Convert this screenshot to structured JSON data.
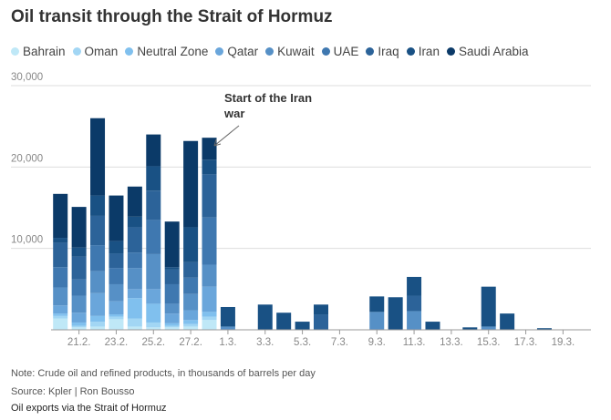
{
  "chart_data": {
    "type": "bar",
    "stacked": true,
    "title": "Oil transit through the Strait of Hormuz",
    "annotation": [
      "Start of the Iran",
      "war"
    ],
    "note": "Note: Crude oil and refined products, in thousands of barrels per day",
    "source": "Source: Kpler | Ron Bousso",
    "caption": "Oil exports via the Strait of Hormuz",
    "categories": [
      null,
      "21.2.",
      null,
      "23.2.",
      null,
      "25.2.",
      null,
      "27.2.",
      null,
      "1.3.",
      null,
      "3.3.",
      null,
      "5.3.",
      null,
      "7.3.",
      null,
      "9.3.",
      null,
      "11.3.",
      null,
      "13.3.",
      null,
      "15.3.",
      null,
      "17.3.",
      null,
      "19.3.",
      null
    ],
    "ylim": [
      0,
      30000
    ],
    "yticks": [
      {
        "value": 10000,
        "label": "10,000"
      },
      {
        "value": 20000,
        "label": "20,000"
      },
      {
        "value": 30000,
        "label": "30,000"
      }
    ],
    "grid": true,
    "series": [
      {
        "name": "Bahrain",
        "color": "#bfe8f7",
        "values": [
          1400,
          300,
          400,
          1300,
          400,
          300,
          300,
          400,
          1200,
          0,
          0,
          0,
          0,
          0,
          0,
          0,
          0,
          0,
          0,
          0,
          0,
          0,
          0,
          0,
          0,
          0,
          0,
          0,
          0
        ]
      },
      {
        "name": "Oman",
        "color": "#a2d6f4",
        "values": [
          300,
          200,
          600,
          300,
          1000,
          600,
          200,
          300,
          400,
          0,
          0,
          0,
          0,
          0,
          0,
          0,
          0,
          0,
          0,
          0,
          0,
          0,
          0,
          0,
          0,
          0,
          0,
          0,
          0
        ]
      },
      {
        "name": "Neutral Zone",
        "color": "#80c0ee",
        "values": [
          300,
          400,
          700,
          300,
          2500,
          2300,
          300,
          500,
          600,
          0,
          0,
          0,
          0,
          0,
          0,
          0,
          0,
          0,
          0,
          0,
          0,
          0,
          0,
          0,
          0,
          0,
          0,
          0,
          0
        ]
      },
      {
        "name": "Qatar",
        "color": "#6aa6db",
        "values": [
          1000,
          1200,
          2800,
          1600,
          1100,
          1800,
          1200,
          1200,
          3100,
          0,
          0,
          0,
          0,
          0,
          0,
          0,
          0,
          0,
          0,
          0,
          0,
          0,
          0,
          0,
          0,
          0,
          0,
          0,
          0
        ]
      },
      {
        "name": "Kuwait",
        "color": "#5690c6",
        "values": [
          2200,
          2100,
          2700,
          2100,
          2600,
          4300,
          1200,
          2000,
          2700,
          400,
          0,
          0,
          0,
          0,
          0,
          0,
          0,
          2200,
          0,
          2300,
          0,
          0,
          0,
          400,
          0,
          0,
          0,
          0,
          0
        ]
      },
      {
        "name": "UAE",
        "color": "#3f78b0",
        "values": [
          2500,
          2000,
          3200,
          2000,
          1900,
          4200,
          2400,
          2000,
          5800,
          0,
          0,
          0,
          0,
          0,
          0,
          0,
          0,
          0,
          0,
          0,
          0,
          0,
          0,
          0,
          0,
          0,
          0,
          0,
          0
        ]
      },
      {
        "name": "Iraq",
        "color": "#2c6399",
        "values": [
          3000,
          2800,
          3600,
          1800,
          3100,
          3600,
          1800,
          1900,
          5300,
          0,
          0,
          0,
          0,
          0,
          1900,
          0,
          0,
          0,
          0,
          1900,
          0,
          0,
          0,
          0,
          0,
          0,
          0,
          0,
          0
        ]
      },
      {
        "name": "Iran",
        "color": "#195184",
        "values": [
          600,
          1100,
          2500,
          1500,
          1300,
          3000,
          300,
          4300,
          1800,
          2400,
          0,
          3100,
          2100,
          1000,
          1200,
          0,
          0,
          1900,
          4000,
          2300,
          1000,
          0,
          300,
          4900,
          2000,
          0,
          200,
          0,
          0
        ]
      },
      {
        "name": "Saudi Arabia",
        "color": "#0b3a68",
        "values": [
          5400,
          5000,
          9500,
          5600,
          3700,
          3900,
          5600,
          10600,
          2700,
          0,
          0,
          0,
          0,
          0,
          0,
          0,
          0,
          0,
          0,
          0,
          0,
          0,
          0,
          0,
          0,
          0,
          0,
          0,
          0
        ]
      }
    ]
  }
}
